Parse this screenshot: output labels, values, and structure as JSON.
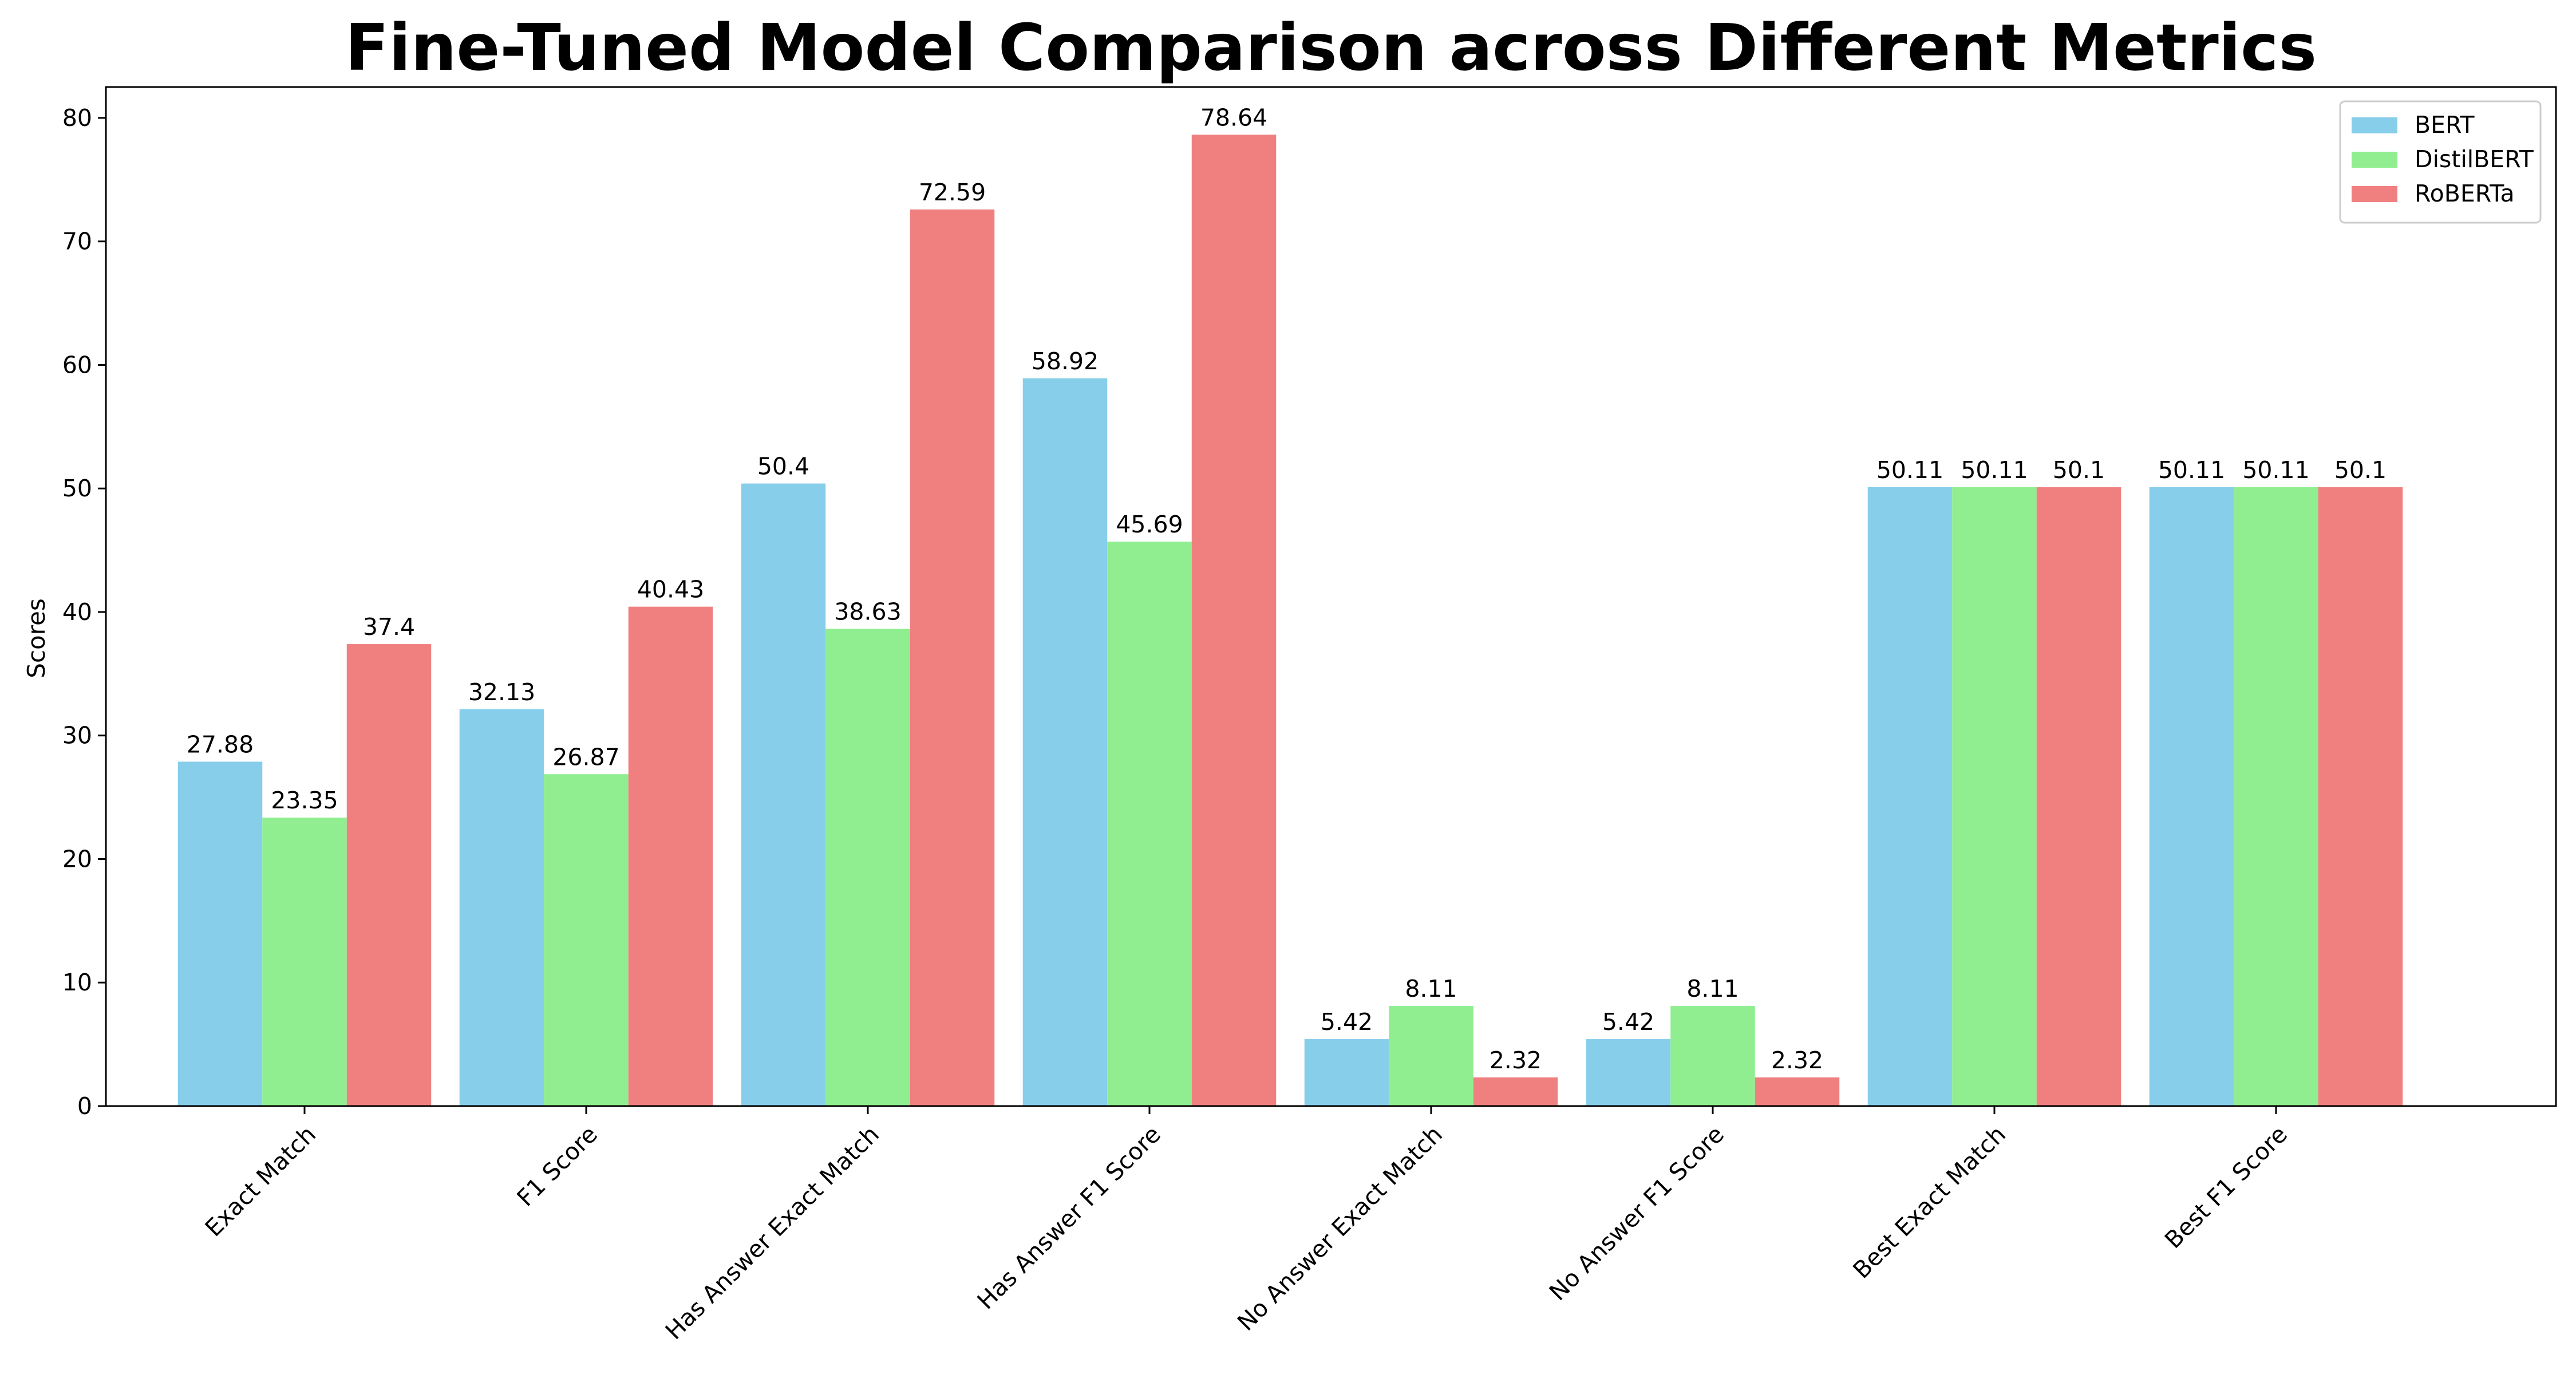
{
  "chart_data": {
    "type": "bar",
    "title": "Fine-Tuned Model Comparison across Different Metrics",
    "xlabel": "",
    "ylabel": "Scores",
    "ylim": [
      0,
      82.5
    ],
    "yticks": [
      0,
      10,
      20,
      30,
      40,
      50,
      60,
      70,
      80
    ],
    "grid": false,
    "legend_position": "top-right",
    "categories": [
      "Exact Match",
      "F1 Score",
      "Has Answer Exact Match",
      "Has Answer F1 Score",
      "No Answer Exact Match",
      "No Answer F1 Score",
      "Best Exact Match",
      "Best F1 Score"
    ],
    "series": [
      {
        "name": "BERT",
        "color": "#87ceeb",
        "values": [
          27.88,
          32.13,
          50.4,
          58.92,
          5.42,
          5.42,
          50.11,
          50.11
        ],
        "labels": [
          "27.88",
          "32.13",
          "50.4",
          "58.92",
          "5.42",
          "5.42",
          "50.11",
          "50.11"
        ]
      },
      {
        "name": "DistilBERT",
        "color": "#90ee90",
        "values": [
          23.35,
          26.87,
          38.63,
          45.69,
          8.11,
          8.11,
          50.11,
          50.11
        ],
        "labels": [
          "23.35",
          "26.87",
          "38.63",
          "45.69",
          "8.11",
          "8.11",
          "50.11",
          "50.11"
        ]
      },
      {
        "name": "RoBERTa",
        "color": "#f08080",
        "values": [
          37.4,
          40.43,
          72.59,
          78.64,
          2.32,
          2.32,
          50.1,
          50.1
        ],
        "labels": [
          "37.4",
          "40.43",
          "72.59",
          "78.64",
          "2.32",
          "2.32",
          "50.1",
          "50.1"
        ]
      }
    ]
  }
}
